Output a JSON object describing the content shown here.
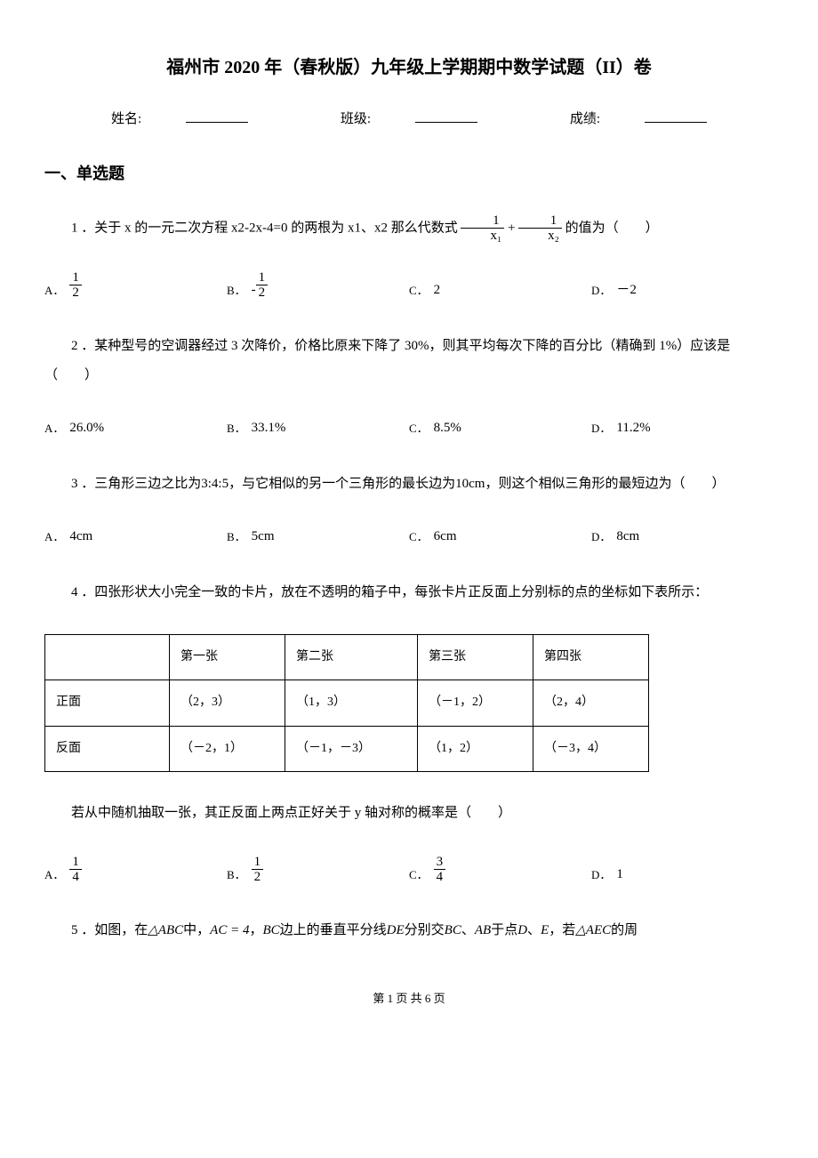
{
  "title": "福州市 2020 年（春秋版）九年级上学期期中数学试题（II）卷",
  "info": {
    "name_label": "姓名:",
    "class_label": "班级:",
    "score_label": "成绩:"
  },
  "section1_heading": "一、单选题",
  "q1": {
    "pre": "1 ．关于 x 的一元二次方程 x2-2x-4=0 的两根为 x1、x2 那么代数式",
    "frac1_num": "1",
    "frac1_den": "x₁",
    "plus": "+",
    "frac2_num": "1",
    "frac2_den": "x₂",
    "post": "的值为（　　）",
    "A_label": "A．",
    "A_num": "1",
    "A_den": "2",
    "B_label": "B．",
    "B_neg": "-",
    "B_num": "1",
    "B_den": "2",
    "C_label": "C．",
    "C_val": "2",
    "D_label": "D．",
    "D_val": "－2"
  },
  "q2": {
    "text": "2 ．某种型号的空调器经过 3 次降价，价格比原来下降了 30%，则其平均每次下降的百分比（精确到 1%）应该是（　　）",
    "A_label": "A．",
    "A_val": "26.0%",
    "B_label": "B．",
    "B_val": "33.1%",
    "C_label": "C．",
    "C_val": "8.5%",
    "D_label": "D．",
    "D_val": "11.2%"
  },
  "q3": {
    "pre": "3 ．三角形三边之比为",
    "ratio": "3:4:5",
    "mid": "，与它相似的另一个三角形的最长边为",
    "len": "10cm",
    "post": "，则这个相似三角形的最短边为（　　）",
    "A_label": "A．",
    "A_val": "4cm",
    "B_label": "B．",
    "B_val": "5cm",
    "C_label": "C．",
    "C_val": "6cm",
    "D_label": "D．",
    "D_val": "8cm"
  },
  "q4": {
    "text": "4 ．四张形状大小完全一致的卡片，放在不透明的箱子中，每张卡片正反面上分别标的点的坐标如下表所示：",
    "table": {
      "h0": "",
      "h1": "第一张",
      "h2": "第二张",
      "h3": "第三张",
      "h4": "第四张",
      "r1_label": "正面",
      "r1_c1": "（2，3）",
      "r1_c2": "（1，3）",
      "r1_c3": "（－1，2）",
      "r1_c4": "（2，4）",
      "r2_label": "反面",
      "r2_c1": "（－2，1）",
      "r2_c2": "（－1，－3）",
      "r2_c3": "（1，2）",
      "r2_c4": "（－3，4）"
    },
    "text2": "若从中随机抽取一张，其正反面上两点正好关于 y 轴对称的概率是（　　）",
    "A_label": "A．",
    "A_num": "1",
    "A_den": "4",
    "B_label": "B．",
    "B_num": "1",
    "B_den": "2",
    "C_label": "C．",
    "C_num": "3",
    "C_den": "4",
    "D_label": "D．",
    "D_val": "1"
  },
  "q5": {
    "pre": "5 ．如图，在",
    "tri1": "△ABC",
    "mid1": "中，",
    "ac": "AC = 4",
    "mid2": "，",
    "bc": "BC",
    "mid3": "边上的垂直平分线",
    "de": "DE",
    "mid4": "分别交",
    "bc2": "BC",
    "mid5": "、",
    "ab": "AB",
    "mid6": "于点",
    "d": "D",
    "mid7": "、",
    "e": "E",
    "mid8": "，若",
    "tri2": "△AEC",
    "post": "的周"
  },
  "footer": "第 1 页 共 6 页"
}
